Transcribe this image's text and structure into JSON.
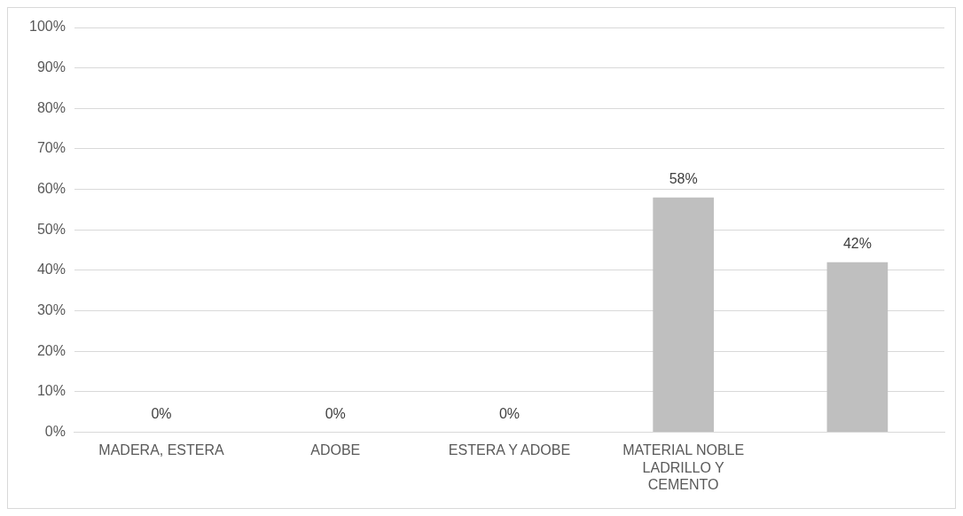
{
  "chart_data": {
    "type": "bar",
    "categories": [
      "MADERA, ESTERA",
      "ADOBE",
      "ESTERA Y ADOBE",
      "MATERIAL NOBLE LADRILLO Y CEMENTO",
      null
    ],
    "values": [
      0,
      0,
      0,
      58,
      42
    ],
    "color": "#bfbfbf",
    "value_labels": [
      "0%",
      "0%",
      "0%",
      "58%",
      "42%"
    ],
    "ylim": [
      0,
      100
    ],
    "yticks": [
      {
        "value": 0,
        "label": "0%"
      },
      {
        "value": 10,
        "label": "10%"
      },
      {
        "value": 20,
        "label": "20%"
      },
      {
        "value": 30,
        "label": "30%"
      },
      {
        "value": 40,
        "label": "40%"
      },
      {
        "value": 50,
        "label": "50%"
      },
      {
        "value": 60,
        "label": "60%"
      },
      {
        "value": 70,
        "label": "70%"
      },
      {
        "value": 80,
        "label": "80%"
      },
      {
        "value": 90,
        "label": "90%"
      },
      {
        "value": 100,
        "label": "100%"
      }
    ],
    "grid": "y",
    "legend": false
  }
}
